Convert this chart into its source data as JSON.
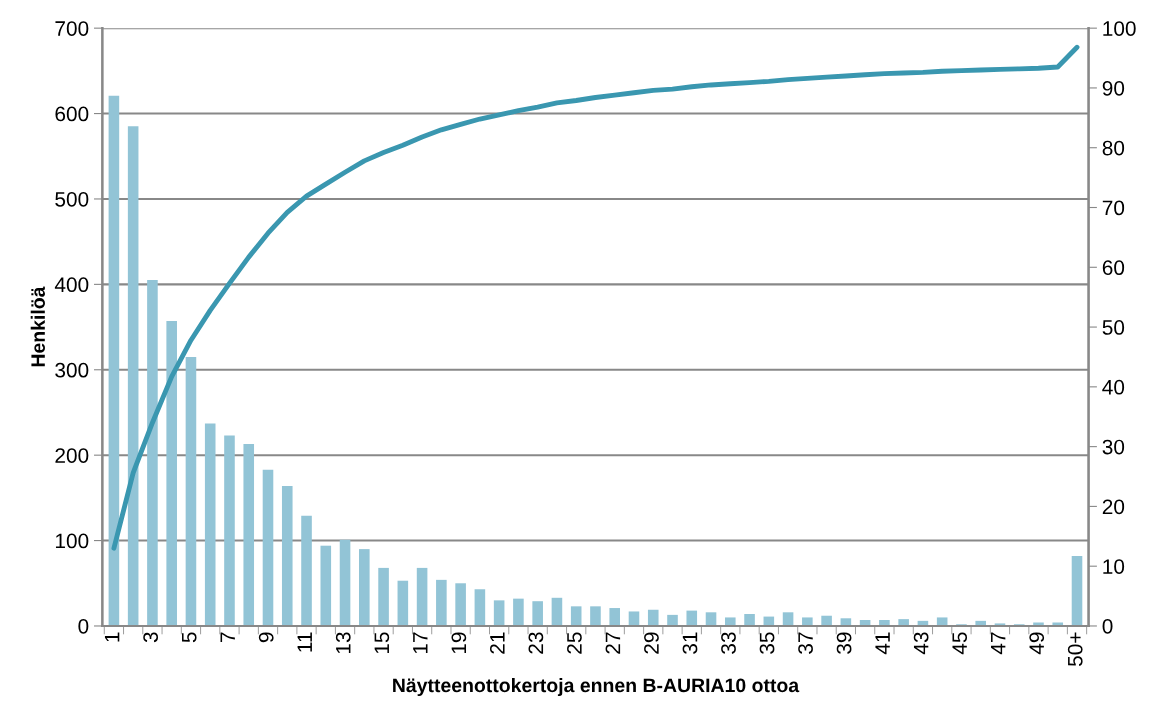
{
  "chart_data": {
    "type": "bar",
    "xlabel": "Näytteenottokertoja ennen B-AURIA10 ottoa",
    "ylabel": "Henkilöä",
    "categories": [
      "1",
      null,
      "3",
      null,
      "5",
      null,
      "7",
      null,
      "9",
      null,
      "11",
      null,
      "13",
      null,
      "15",
      null,
      "17",
      null,
      "19",
      null,
      "21",
      null,
      "23",
      null,
      "25",
      null,
      "27",
      null,
      "29",
      null,
      "31",
      null,
      "33",
      null,
      "35",
      null,
      "37",
      null,
      "39",
      null,
      "41",
      null,
      "43",
      null,
      "45",
      null,
      "47",
      null,
      "49",
      null,
      "50+"
    ],
    "series": [
      {
        "color": "#92c4d6",
        "values": [
          621,
          585,
          405,
          357,
          315,
          237,
          223,
          213,
          183,
          164,
          129,
          94,
          101,
          90,
          68,
          53,
          68,
          54,
          50,
          43,
          30,
          32,
          29,
          33,
          23,
          23,
          21,
          17,
          19,
          13,
          18,
          16,
          10,
          14,
          11,
          16,
          10,
          12,
          9,
          7,
          7,
          8,
          6,
          10,
          2,
          6,
          3,
          2,
          4,
          4,
          82
        ]
      },
      {
        "type": "line",
        "axis": "y2",
        "color": "#3a97b0",
        "values": [
          13,
          25.6,
          34,
          41.7,
          47.8,
          52.8,
          57.3,
          61.7,
          65.7,
          69.2,
          71.9,
          73.9,
          75.9,
          77.8,
          79.2,
          80.4,
          81.8,
          83,
          83.9,
          84.8,
          85.5,
          86.2,
          86.8,
          87.5,
          87.9,
          88.4,
          88.8,
          89.2,
          89.6,
          89.8,
          90.2,
          90.5,
          90.7,
          90.9,
          91.1,
          91.4,
          91.6,
          91.8,
          92,
          92.2,
          92.4,
          92.5,
          92.6,
          92.8,
          92.9,
          93,
          93.1,
          93.2,
          93.3,
          93.5,
          96.8
        ]
      }
    ],
    "ylim": [
      0,
      700
    ],
    "yticks": [
      0,
      100,
      200,
      300,
      400,
      500,
      600,
      700
    ],
    "y2lim": [
      0,
      100
    ],
    "y2ticks": [
      0,
      10,
      20,
      30,
      40,
      50,
      60,
      70,
      80,
      90,
      100
    ],
    "grid": "y",
    "legend": false,
    "marker": "none",
    "line_style": "solid"
  }
}
